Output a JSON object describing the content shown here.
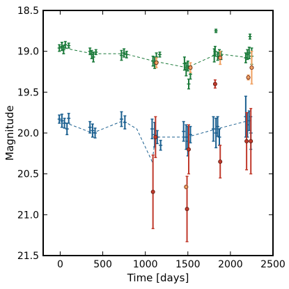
{
  "chart_data": {
    "type": "scatter",
    "xlabel": "Time [days]",
    "ylabel": "Magnitude",
    "xlim": [
      -200,
      2500
    ],
    "ylim": [
      21.5,
      18.5
    ],
    "y_inverted": true,
    "grid": false,
    "xticks": [
      0,
      500,
      1000,
      1500,
      2000,
      2500
    ],
    "yticks": [
      18.5,
      19.0,
      19.5,
      20.0,
      20.5,
      21.0,
      21.5
    ],
    "colors": {
      "green": "#1b7a3a",
      "blue": "#1a5f8f",
      "red": "#c0392b",
      "orange": "#f0a060",
      "green_trend": "#1b7a3a",
      "blue_trend": "#1a5f8f"
    },
    "series": [
      {
        "color": "green",
        "marker": "errorbar",
        "points": [
          {
            "x": -10,
            "y": 18.96,
            "err": 0.04
          },
          {
            "x": 20,
            "y": 18.94,
            "err": 0.05
          },
          {
            "x": 40,
            "y": 18.98,
            "err": 0.05
          },
          {
            "x": 60,
            "y": 18.92,
            "err": 0.04
          },
          {
            "x": 100,
            "y": 18.93,
            "err": 0.03
          },
          {
            "x": 350,
            "y": 19.0,
            "err": 0.04
          },
          {
            "x": 370,
            "y": 19.04,
            "err": 0.05
          },
          {
            "x": 390,
            "y": 19.07,
            "err": 0.06
          },
          {
            "x": 420,
            "y": 19.01,
            "err": 0.03
          },
          {
            "x": 720,
            "y": 19.05,
            "err": 0.06
          },
          {
            "x": 750,
            "y": 19.02,
            "err": 0.05
          },
          {
            "x": 780,
            "y": 19.04,
            "err": 0.04
          },
          {
            "x": 1090,
            "y": 19.12,
            "err": 0.06
          },
          {
            "x": 1110,
            "y": 19.14,
            "err": 0.07
          },
          {
            "x": 1130,
            "y": 19.07,
            "err": 0.05
          },
          {
            "x": 1170,
            "y": 19.04,
            "err": 0.03
          },
          {
            "x": 1460,
            "y": 19.15,
            "err": 0.08
          },
          {
            "x": 1480,
            "y": 19.22,
            "err": 0.08
          },
          {
            "x": 1500,
            "y": 19.18,
            "err": 0.06
          },
          {
            "x": 1510,
            "y": 19.4,
            "err": 0.06
          },
          {
            "x": 1530,
            "y": 19.28,
            "err": 0.06
          },
          {
            "x": 1810,
            "y": 19.05,
            "err": 0.08
          },
          {
            "x": 1820,
            "y": 19.0,
            "err": 0.06
          },
          {
            "x": 1830,
            "y": 18.75,
            "err": 0.02
          },
          {
            "x": 1850,
            "y": 19.06,
            "err": 0.05
          },
          {
            "x": 1870,
            "y": 19.03,
            "err": 0.05
          },
          {
            "x": 1890,
            "y": 19.05,
            "err": 0.05
          },
          {
            "x": 2180,
            "y": 19.08,
            "err": 0.06
          },
          {
            "x": 2200,
            "y": 19.04,
            "err": 0.06
          },
          {
            "x": 2220,
            "y": 19.02,
            "err": 0.07
          },
          {
            "x": 2230,
            "y": 18.82,
            "err": 0.03
          },
          {
            "x": 2250,
            "y": 19.06,
            "err": 0.1
          }
        ]
      },
      {
        "color": "blue",
        "marker": "errorbar",
        "points": [
          {
            "x": -10,
            "y": 19.83,
            "err": 0.05
          },
          {
            "x": 20,
            "y": 19.85,
            "err": 0.08
          },
          {
            "x": 50,
            "y": 19.88,
            "err": 0.06
          },
          {
            "x": 80,
            "y": 19.95,
            "err": 0.07
          },
          {
            "x": 100,
            "y": 19.82,
            "err": 0.06
          },
          {
            "x": 350,
            "y": 19.93,
            "err": 0.07
          },
          {
            "x": 380,
            "y": 19.97,
            "err": 0.08
          },
          {
            "x": 410,
            "y": 20.0,
            "err": 0.06
          },
          {
            "x": 720,
            "y": 19.83,
            "err": 0.09
          },
          {
            "x": 760,
            "y": 19.87,
            "err": 0.08
          },
          {
            "x": 1080,
            "y": 19.95,
            "err": 0.12
          },
          {
            "x": 1110,
            "y": 20.02,
            "err": 0.15
          },
          {
            "x": 1140,
            "y": 20.05,
            "err": 0.08
          },
          {
            "x": 1180,
            "y": 20.15,
            "err": 0.06
          },
          {
            "x": 1450,
            "y": 19.98,
            "err": 0.12
          },
          {
            "x": 1480,
            "y": 20.05,
            "err": 0.15
          },
          {
            "x": 1500,
            "y": 20.1,
            "err": 0.18
          },
          {
            "x": 1530,
            "y": 20.02,
            "err": 0.1
          },
          {
            "x": 1800,
            "y": 19.95,
            "err": 0.15
          },
          {
            "x": 1830,
            "y": 20.0,
            "err": 0.18
          },
          {
            "x": 1850,
            "y": 19.92,
            "err": 0.12
          },
          {
            "x": 1870,
            "y": 20.05,
            "err": 0.1
          },
          {
            "x": 2180,
            "y": 19.8,
            "err": 0.25
          },
          {
            "x": 2200,
            "y": 19.9,
            "err": 0.15
          },
          {
            "x": 2220,
            "y": 19.85,
            "err": 0.12
          },
          {
            "x": 2240,
            "y": 20.0,
            "err": 0.2
          }
        ]
      },
      {
        "color": "red",
        "marker": "circle-errorbar",
        "points": [
          {
            "x": 1090,
            "y": 20.72,
            "err": 0.45
          },
          {
            "x": 1120,
            "y": 20.05,
            "err": 0.25
          },
          {
            "x": 1490,
            "y": 20.93,
            "err": 0.4
          },
          {
            "x": 1510,
            "y": 20.2,
            "err": 0.3
          },
          {
            "x": 1820,
            "y": 19.4,
            "err": 0.05
          },
          {
            "x": 1880,
            "y": 20.35,
            "err": 0.2
          },
          {
            "x": 2190,
            "y": 20.1,
            "err": 0.35
          },
          {
            "x": 2240,
            "y": 20.1,
            "err": 0.4
          }
        ]
      },
      {
        "color": "orange",
        "marker": "circle-errorbar",
        "points": [
          {
            "x": 1130,
            "y": 19.14,
            "err": 0.06
          },
          {
            "x": 1480,
            "y": 20.66,
            "err": 0.02
          },
          {
            "x": 1530,
            "y": 19.2,
            "err": 0.06
          },
          {
            "x": 1880,
            "y": 19.08,
            "err": 0.08
          },
          {
            "x": 2210,
            "y": 19.32,
            "err": 0.03
          },
          {
            "x": 2250,
            "y": 19.2,
            "err": 0.2
          }
        ]
      }
    ],
    "trend_lines": [
      {
        "color": "green_trend",
        "style": "dashed",
        "points": [
          {
            "x": 0,
            "y": 18.95
          },
          {
            "x": 380,
            "y": 19.03
          },
          {
            "x": 760,
            "y": 19.03
          },
          {
            "x": 1100,
            "y": 19.12
          },
          {
            "x": 1490,
            "y": 19.2
          },
          {
            "x": 1850,
            "y": 19.03
          },
          {
            "x": 2230,
            "y": 19.08
          }
        ]
      },
      {
        "color": "blue_trend",
        "style": "dashed",
        "points": [
          {
            "x": 0,
            "y": 19.85
          },
          {
            "x": 380,
            "y": 20.0
          },
          {
            "x": 740,
            "y": 19.85
          },
          {
            "x": 900,
            "y": 19.95
          },
          {
            "x": 1080,
            "y": 20.35
          },
          {
            "x": 1120,
            "y": 20.05
          },
          {
            "x": 1490,
            "y": 20.05
          },
          {
            "x": 1840,
            "y": 19.95
          },
          {
            "x": 2210,
            "y": 19.85
          }
        ]
      }
    ]
  }
}
